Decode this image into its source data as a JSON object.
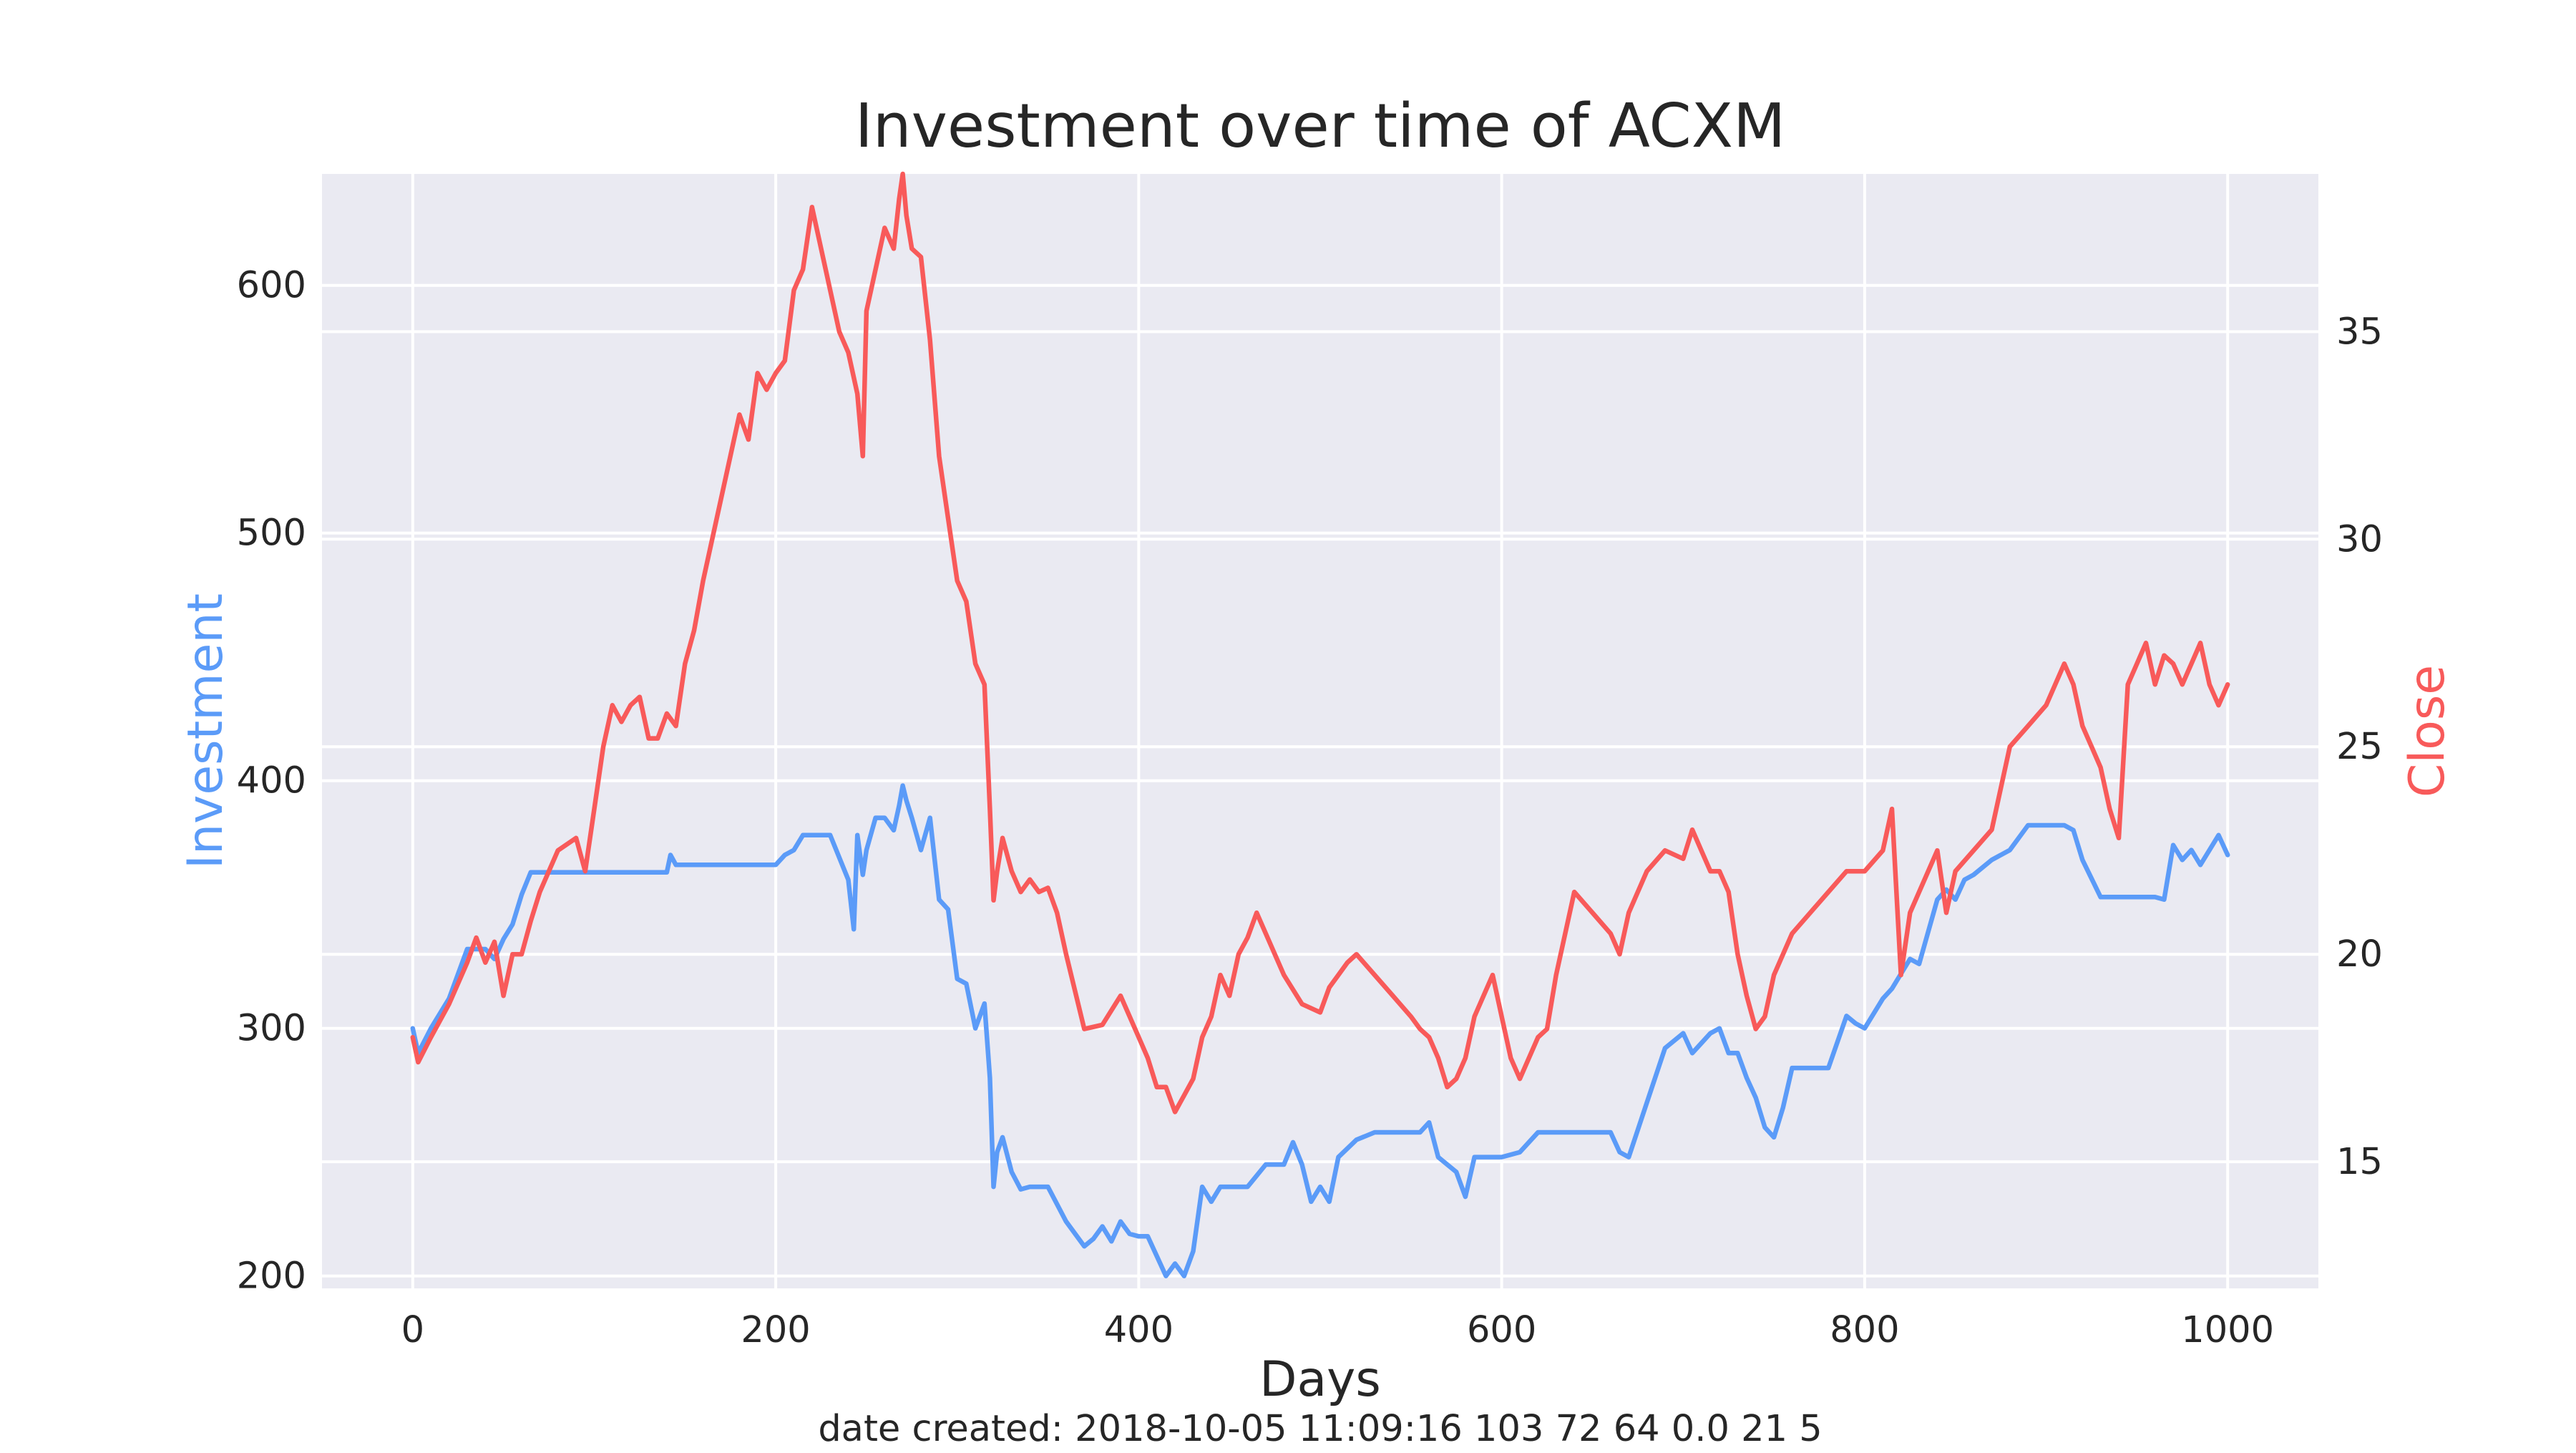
{
  "chart_data": {
    "type": "line",
    "title": "Investment over time of ACXM",
    "xlabel": "Days",
    "ylabel_left": "Investment",
    "ylabel_right": "Close",
    "footnote": "date created: 2018-10-05 11:09:16 103 72 64 0.0 21 5",
    "xlim": [
      -50,
      1050
    ],
    "ylim_left": [
      195,
      645
    ],
    "ylim_right": [
      11.95,
      38.8
    ],
    "x_ticks": [
      0,
      200,
      400,
      600,
      800,
      1000
    ],
    "y_left_ticks": [
      200,
      300,
      400,
      500,
      600
    ],
    "y_right_ticks": [
      15,
      20,
      25,
      30,
      35
    ],
    "grid": true,
    "colors": {
      "background": "#eaeaf2",
      "grid": "#ffffff",
      "investment": "#5b9bf8",
      "close": "#f85a5a",
      "text": "#262626"
    },
    "series": [
      {
        "name": "Investment",
        "axis": "left",
        "color": "#5b9bf8",
        "x": [
          0,
          3,
          10,
          20,
          30,
          40,
          45,
          50,
          55,
          60,
          65,
          70,
          80,
          100,
          120,
          140,
          142,
          145,
          160,
          180,
          200,
          205,
          210,
          215,
          220,
          230,
          240,
          243,
          245,
          248,
          250,
          255,
          260,
          265,
          268,
          270,
          272,
          275,
          280,
          285,
          290,
          295,
          300,
          305,
          310,
          315,
          318,
          320,
          322,
          325,
          330,
          335,
          340,
          350,
          360,
          370,
          375,
          380,
          385,
          390,
          395,
          400,
          405,
          410,
          415,
          420,
          425,
          430,
          435,
          440,
          445,
          450,
          460,
          470,
          480,
          485,
          490,
          495,
          500,
          505,
          510,
          520,
          530,
          540,
          550,
          555,
          560,
          565,
          570,
          575,
          580,
          585,
          590,
          600,
          610,
          620,
          630,
          640,
          650,
          660,
          665,
          670,
          680,
          690,
          700,
          705,
          710,
          715,
          720,
          725,
          730,
          735,
          740,
          745,
          750,
          755,
          760,
          770,
          780,
          790,
          795,
          800,
          810,
          815,
          820,
          825,
          830,
          840,
          845,
          850,
          855,
          860,
          870,
          880,
          890,
          900,
          910,
          915,
          920,
          930,
          940,
          950,
          955,
          960,
          965,
          970,
          975,
          980,
          985,
          990,
          995,
          1000
        ],
        "values": [
          300,
          290,
          300,
          312,
          332,
          332,
          328,
          336,
          342,
          354,
          363,
          363,
          363,
          363,
          363,
          363,
          370,
          366,
          366,
          366,
          366,
          370,
          372,
          378,
          378,
          378,
          360,
          340,
          378,
          362,
          372,
          385,
          385,
          380,
          390,
          398,
          392,
          385,
          372,
          385,
          352,
          348,
          320,
          318,
          300,
          310,
          280,
          236,
          250,
          256,
          242,
          235,
          236,
          236,
          222,
          212,
          215,
          220,
          214,
          222,
          217,
          216,
          216,
          208,
          200,
          205,
          200,
          210,
          236,
          230,
          236,
          236,
          236,
          245,
          245,
          254,
          245,
          230,
          236,
          230,
          248,
          255,
          258,
          258,
          258,
          258,
          262,
          248,
          245,
          242,
          232,
          248,
          248,
          248,
          250,
          258,
          258,
          258,
          258,
          258,
          250,
          248,
          270,
          292,
          298,
          290,
          294,
          298,
          300,
          290,
          290,
          280,
          272,
          260,
          256,
          268,
          284,
          284,
          284,
          305,
          302,
          300,
          312,
          316,
          322,
          328,
          326,
          352,
          356,
          352,
          360,
          362,
          368,
          372,
          382,
          382,
          382,
          380,
          368,
          353,
          353,
          353,
          353,
          353,
          352,
          374,
          368,
          372,
          366,
          372,
          378,
          370
        ]
      },
      {
        "name": "Close",
        "axis": "right",
        "color": "#f85a5a",
        "x": [
          0,
          3,
          10,
          20,
          30,
          35,
          40,
          45,
          50,
          55,
          60,
          65,
          70,
          80,
          90,
          95,
          100,
          105,
          110,
          115,
          120,
          125,
          130,
          135,
          140,
          145,
          150,
          155,
          160,
          165,
          170,
          175,
          180,
          185,
          190,
          195,
          200,
          205,
          210,
          215,
          220,
          225,
          230,
          235,
          240,
          245,
          248,
          250,
          255,
          260,
          265,
          268,
          270,
          272,
          275,
          280,
          285,
          290,
          295,
          300,
          305,
          310,
          315,
          318,
          320,
          322,
          325,
          330,
          335,
          340,
          345,
          350,
          355,
          360,
          370,
          380,
          390,
          400,
          405,
          410,
          415,
          420,
          425,
          430,
          435,
          440,
          445,
          450,
          455,
          460,
          465,
          470,
          480,
          490,
          500,
          505,
          510,
          515,
          520,
          530,
          540,
          550,
          555,
          560,
          565,
          570,
          575,
          580,
          585,
          590,
          595,
          600,
          605,
          610,
          615,
          620,
          625,
          630,
          640,
          650,
          660,
          665,
          670,
          680,
          690,
          700,
          705,
          710,
          715,
          720,
          725,
          730,
          735,
          740,
          745,
          750,
          755,
          760,
          770,
          780,
          790,
          800,
          810,
          815,
          820,
          825,
          830,
          840,
          845,
          850,
          860,
          870,
          880,
          890,
          900,
          905,
          910,
          915,
          920,
          925,
          930,
          935,
          940,
          945,
          950,
          955,
          960,
          965,
          970,
          975,
          980,
          985,
          990,
          995,
          1000
        ],
        "values": [
          18.0,
          17.4,
          18.0,
          18.8,
          19.8,
          20.4,
          19.8,
          20.3,
          19.0,
          20.0,
          20.0,
          20.8,
          21.5,
          22.5,
          22.8,
          22.0,
          23.5,
          25.0,
          26.0,
          25.6,
          26.0,
          26.2,
          25.2,
          25.2,
          25.8,
          25.5,
          27.0,
          27.8,
          29.0,
          30.0,
          31.0,
          32.0,
          33.0,
          32.4,
          34.0,
          33.6,
          34.0,
          34.3,
          36.0,
          36.5,
          38.0,
          37.0,
          36.0,
          35.0,
          34.5,
          33.5,
          32.0,
          35.5,
          36.5,
          37.5,
          37.0,
          38.2,
          38.8,
          37.8,
          37.0,
          36.8,
          34.8,
          32.0,
          30.5,
          29.0,
          28.5,
          27.0,
          26.5,
          23.5,
          21.3,
          22.0,
          22.8,
          22.0,
          21.5,
          21.8,
          21.5,
          21.6,
          21.0,
          20.0,
          18.2,
          18.3,
          19.0,
          18.0,
          17.5,
          16.8,
          16.8,
          16.2,
          16.6,
          17.0,
          18.0,
          18.5,
          19.5,
          19.0,
          20.0,
          20.4,
          21.0,
          20.5,
          19.5,
          18.8,
          18.6,
          19.2,
          19.5,
          19.8,
          20.0,
          19.5,
          19.0,
          18.5,
          18.2,
          18.0,
          17.5,
          16.8,
          17.0,
          17.5,
          18.5,
          19.0,
          19.5,
          18.5,
          17.5,
          17.0,
          17.5,
          18.0,
          18.2,
          19.5,
          21.5,
          21.0,
          20.5,
          20.0,
          21.0,
          22.0,
          22.5,
          22.3,
          23.0,
          22.5,
          22.0,
          22.0,
          21.5,
          20.0,
          19.0,
          18.2,
          18.5,
          19.5,
          20.0,
          20.5,
          21.0,
          21.5,
          22.0,
          22.0,
          22.5,
          23.5,
          19.5,
          21.0,
          21.5,
          22.5,
          21.0,
          22.0,
          22.5,
          23.0,
          25.0,
          25.5,
          26.0,
          26.5,
          27.0,
          26.5,
          25.5,
          25.0,
          24.5,
          23.5,
          22.8,
          26.5,
          27.0,
          27.5,
          26.5,
          27.2,
          27.0,
          26.5,
          27.0,
          27.5,
          26.5,
          26.0,
          26.5
        ]
      }
    ]
  }
}
